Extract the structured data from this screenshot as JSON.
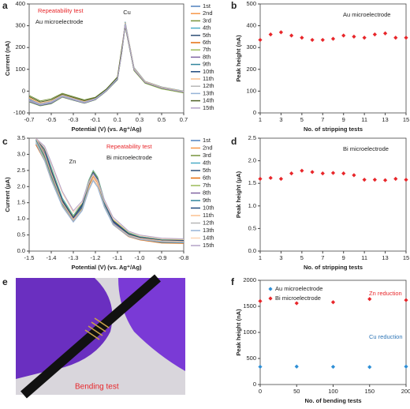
{
  "chart_data": [
    {
      "type": "line",
      "panel": "a",
      "xlabel": "Potential (V) (vs. Ag⁺/Ag)",
      "ylabel": "Current (nA)",
      "xlim": [
        -0.7,
        0.7
      ],
      "xticks": [
        -0.7,
        -0.5,
        -0.3,
        -0.1,
        0.1,
        0.3,
        0.5,
        0.7
      ],
      "ylim": [
        -100,
        400
      ],
      "yticks": [
        -100,
        0,
        100,
        200,
        300,
        400
      ],
      "annotations": [
        {
          "text": "Repeatability test",
          "color": "#e8262a"
        },
        {
          "text": "Au microelectrode",
          "color": "#222222"
        },
        {
          "text": "Cu",
          "color": "#222222"
        }
      ],
      "x": [
        -0.7,
        -0.6,
        -0.5,
        -0.4,
        -0.3,
        -0.2,
        -0.1,
        0,
        0.1,
        0.14,
        0.17,
        0.2,
        0.25,
        0.35,
        0.5,
        0.7
      ],
      "series": [
        {
          "name": "1st",
          "color": "#4f81bd",
          "values": [
            -35,
            -60,
            -50,
            -20,
            -35,
            -50,
            -35,
            5,
            60,
            190,
            310,
            230,
            100,
            40,
            15,
            -5
          ]
        },
        {
          "name": "2nd",
          "color": "#f79646",
          "values": [
            -30,
            -55,
            -45,
            -18,
            -32,
            -48,
            -32,
            8,
            62,
            195,
            315,
            235,
            105,
            42,
            18,
            -2
          ]
        },
        {
          "name": "3rd",
          "color": "#77933c",
          "values": [
            -20,
            -45,
            -35,
            -10,
            -25,
            -40,
            -28,
            10,
            65,
            200,
            300,
            225,
            95,
            38,
            12,
            -8
          ]
        },
        {
          "name": "4th",
          "color": "#4bacc6",
          "values": [
            -40,
            -62,
            -52,
            -22,
            -38,
            -52,
            -36,
            4,
            58,
            185,
            305,
            228,
            98,
            40,
            14,
            -4
          ]
        },
        {
          "name": "5th",
          "color": "#2c4d75",
          "values": [
            -45,
            -65,
            -55,
            -25,
            -40,
            -55,
            -38,
            2,
            55,
            180,
            300,
            222,
            96,
            38,
            12,
            -6
          ]
        },
        {
          "name": "6th",
          "color": "#e46c0a",
          "values": [
            -38,
            -58,
            -48,
            -20,
            -36,
            -50,
            -34,
            6,
            60,
            188,
            308,
            230,
            102,
            41,
            16,
            -3
          ]
        },
        {
          "name": "7th",
          "color": "#9bbb59",
          "values": [
            -50,
            -68,
            -58,
            -28,
            -42,
            -56,
            -40,
            0,
            52,
            178,
            298,
            220,
            94,
            36,
            10,
            -8
          ]
        },
        {
          "name": "8th",
          "color": "#8064a2",
          "values": [
            -42,
            -60,
            -50,
            -22,
            -38,
            -52,
            -36,
            4,
            58,
            186,
            312,
            232,
            104,
            43,
            17,
            -2
          ]
        },
        {
          "name": "9th",
          "color": "#31859c",
          "values": [
            -36,
            -57,
            -47,
            -19,
            -34,
            -49,
            -33,
            7,
            61,
            192,
            318,
            238,
            108,
            45,
            19,
            0
          ]
        },
        {
          "name": "10th",
          "color": "#1f497d",
          "values": [
            -48,
            -66,
            -56,
            -26,
            -41,
            -55,
            -39,
            1,
            54,
            182,
            302,
            224,
            97,
            39,
            13,
            -5
          ]
        },
        {
          "name": "11th",
          "color": "#fac090",
          "values": [
            -33,
            -56,
            -46,
            -18,
            -33,
            -48,
            -33,
            8,
            63,
            196,
            314,
            236,
            106,
            44,
            18,
            -1
          ]
        },
        {
          "name": "12th",
          "color": "#b7b7b7",
          "values": [
            -44,
            -63,
            -53,
            -24,
            -39,
            -53,
            -37,
            3,
            57,
            184,
            306,
            226,
            99,
            40,
            14,
            -4
          ]
        },
        {
          "name": "13th",
          "color": "#95b3d7",
          "values": [
            -39,
            -59,
            -49,
            -21,
            -36,
            -51,
            -35,
            5,
            59,
            189,
            309,
            229,
            101,
            41,
            15,
            -3
          ]
        },
        {
          "name": "14th",
          "color": "#4f6228",
          "values": [
            -25,
            -50,
            -40,
            -14,
            -29,
            -44,
            -30,
            9,
            64,
            198,
            296,
            224,
            96,
            39,
            13,
            -6
          ]
        },
        {
          "name": "15th",
          "color": "#b3a2c7",
          "values": [
            -46,
            -64,
            -54,
            -25,
            -40,
            -54,
            -38,
            2,
            56,
            183,
            303,
            225,
            98,
            40,
            14,
            -5
          ]
        }
      ]
    },
    {
      "type": "scatter",
      "panel": "b",
      "xlabel": "No. of stripping tests",
      "ylabel": "Peak height (nA)",
      "xlim": [
        1,
        15
      ],
      "xticks": [
        1,
        3,
        5,
        7,
        9,
        11,
        13,
        15
      ],
      "ylim": [
        0,
        500
      ],
      "yticks": [
        0,
        100,
        200,
        300,
        400,
        500
      ],
      "annotations": [
        {
          "text": "Au microelectrode",
          "color": "#222222"
        }
      ],
      "x": [
        1,
        2,
        3,
        4,
        5,
        6,
        7,
        8,
        9,
        10,
        11,
        12,
        13,
        14,
        15
      ],
      "series": [
        {
          "color": "#e8262a",
          "values": [
            335,
            360,
            370,
            355,
            345,
            335,
            335,
            340,
            355,
            350,
            345,
            360,
            365,
            345,
            345
          ]
        }
      ]
    },
    {
      "type": "line",
      "panel": "c",
      "xlabel": "Potential (V) (vs. Ag⁺/Ag)",
      "ylabel": "Current (μA)",
      "xlim": [
        -1.5,
        -0.8
      ],
      "xticks": [
        -1.5,
        -1.4,
        -1.3,
        -1.2,
        -1.1,
        {
          "value": -1,
          "label": "-1.0"
        },
        -0.9,
        -0.8
      ],
      "ylim": [
        0,
        3.5
      ],
      "yticks": [
        {
          "value": 0,
          "label": "0.0"
        },
        0.5,
        {
          "value": 1,
          "label": "1.0"
        },
        1.5,
        {
          "value": 2,
          "label": "2.0"
        },
        2.5,
        {
          "value": 3,
          "label": "3.0"
        },
        3.5
      ],
      "annotations": [
        {
          "text": "Repeatability test",
          "color": "#e8262a"
        },
        {
          "text": "Bi microelectrode",
          "color": "#222222"
        },
        {
          "text": "Zn",
          "color": "#222222"
        }
      ],
      "x": [
        -1.47,
        -1.43,
        -1.4,
        -1.35,
        -1.3,
        -1.26,
        -1.23,
        -1.21,
        -1.19,
        -1.16,
        -1.12,
        -1.05,
        -1,
        -0.9,
        -0.8
      ],
      "series": [
        {
          "name": "1st",
          "color": "#4f81bd",
          "values": [
            3.5,
            3.0,
            2.4,
            1.5,
            1.0,
            1.4,
            2.1,
            2.4,
            2.2,
            1.5,
            0.9,
            0.5,
            0.4,
            0.3,
            0.3
          ]
        },
        {
          "name": "2nd",
          "color": "#f79646",
          "values": [
            3.5,
            3.1,
            2.5,
            1.6,
            1.05,
            1.45,
            2.15,
            2.45,
            2.25,
            1.55,
            0.95,
            0.55,
            0.42,
            0.33,
            0.32
          ]
        },
        {
          "name": "3rd",
          "color": "#77933c",
          "values": [
            3.4,
            2.9,
            2.3,
            1.45,
            0.95,
            1.35,
            2.05,
            2.35,
            2.15,
            1.45,
            0.85,
            0.48,
            0.38,
            0.28,
            0.27
          ]
        },
        {
          "name": "4th",
          "color": "#4bacc6",
          "values": [
            3.5,
            3.2,
            2.6,
            1.65,
            1.1,
            1.5,
            2.2,
            2.5,
            2.3,
            1.6,
            1.0,
            0.58,
            0.45,
            0.36,
            0.35
          ]
        },
        {
          "name": "5th",
          "color": "#2c4d75",
          "values": [
            3.5,
            3.0,
            2.45,
            1.55,
            1.02,
            1.42,
            2.12,
            2.42,
            2.22,
            1.52,
            0.92,
            0.52,
            0.41,
            0.31,
            0.31
          ]
        },
        {
          "name": "6th",
          "color": "#e46c0a",
          "values": [
            3.3,
            2.8,
            2.2,
            1.4,
            0.92,
            1.32,
            2.02,
            2.32,
            2.12,
            1.42,
            0.82,
            0.45,
            0.35,
            0.25,
            0.24
          ]
        },
        {
          "name": "7th",
          "color": "#9bbb59",
          "values": [
            3.5,
            3.1,
            2.55,
            1.6,
            1.08,
            1.48,
            2.18,
            2.48,
            2.28,
            1.58,
            0.98,
            0.56,
            0.44,
            0.35,
            0.34
          ]
        },
        {
          "name": "8th",
          "color": "#8064a2",
          "values": [
            3.5,
            3.05,
            2.45,
            1.52,
            1.0,
            1.38,
            2.08,
            2.38,
            2.18,
            1.48,
            0.88,
            0.49,
            0.39,
            0.29,
            0.29
          ]
        },
        {
          "name": "9th",
          "color": "#31859c",
          "values": [
            3.45,
            2.95,
            2.35,
            1.48,
            0.97,
            1.36,
            2.06,
            2.36,
            2.16,
            1.46,
            0.86,
            0.47,
            0.37,
            0.27,
            0.26
          ]
        },
        {
          "name": "10th",
          "color": "#1f497d",
          "values": [
            3.5,
            3.15,
            2.5,
            1.58,
            1.04,
            1.44,
            2.14,
            2.44,
            2.24,
            1.54,
            0.94,
            0.54,
            0.43,
            0.34,
            0.33
          ]
        },
        {
          "name": "11th",
          "color": "#fac090",
          "values": [
            3.5,
            3.0,
            2.4,
            1.5,
            0.98,
            1.3,
            1.95,
            2.25,
            2.05,
            1.4,
            0.85,
            0.5,
            0.4,
            0.32,
            0.3
          ]
        },
        {
          "name": "12th",
          "color": "#b7b7b7",
          "values": [
            3.4,
            2.85,
            2.25,
            1.42,
            0.94,
            1.28,
            1.9,
            2.2,
            2.0,
            1.38,
            0.84,
            0.48,
            0.38,
            0.3,
            0.28
          ]
        },
        {
          "name": "13th",
          "color": "#95b3d7",
          "values": [
            3.35,
            2.8,
            2.2,
            1.38,
            0.9,
            1.25,
            1.88,
            2.18,
            1.98,
            1.36,
            0.82,
            0.46,
            0.36,
            0.28,
            0.27
          ]
        },
        {
          "name": "14th",
          "color": "#fcd5b5",
          "values": [
            3.5,
            3.2,
            2.7,
            1.8,
            1.2,
            1.5,
            2.1,
            2.35,
            2.15,
            1.55,
            1.0,
            0.6,
            0.48,
            0.38,
            0.36
          ]
        },
        {
          "name": "15th",
          "color": "#b3a2c7",
          "values": [
            3.5,
            3.25,
            2.75,
            1.85,
            1.25,
            1.55,
            2.15,
            2.4,
            2.2,
            1.6,
            1.05,
            0.62,
            0.5,
            0.4,
            0.38
          ]
        }
      ]
    },
    {
      "type": "scatter",
      "panel": "d",
      "xlabel": "No. of stripping tests",
      "ylabel": "Peak height (μA)",
      "xlim": [
        1,
        15
      ],
      "xticks": [
        1,
        3,
        5,
        7,
        9,
        11,
        13,
        15
      ],
      "ylim": [
        0,
        2.5
      ],
      "yticks": [
        {
          "value": 0,
          "label": "0.0"
        },
        0.5,
        {
          "value": 1,
          "label": "1.0"
        },
        1.5,
        {
          "value": 2,
          "label": "2.0"
        },
        2.5
      ],
      "annotations": [
        {
          "text": "Bi microelectrode",
          "color": "#222222"
        }
      ],
      "x": [
        1,
        2,
        3,
        4,
        5,
        6,
        7,
        8,
        9,
        10,
        11,
        12,
        13,
        14,
        15
      ],
      "series": [
        {
          "color": "#e8262a",
          "values": [
            1.6,
            1.62,
            1.6,
            1.72,
            1.78,
            1.75,
            1.72,
            1.73,
            1.72,
            1.68,
            1.58,
            1.58,
            1.57,
            1.6,
            1.58
          ]
        }
      ]
    },
    {
      "type": "scatter",
      "panel": "f",
      "xlabel": "No. of bending tests",
      "ylabel": "Peak height (nA)",
      "xlim": [
        0,
        200
      ],
      "xticks": [
        0,
        50,
        100,
        150,
        200
      ],
      "ylim": [
        0,
        2000
      ],
      "yticks": [
        0,
        500,
        1000,
        1500,
        2000
      ],
      "annotations": [
        {
          "text": "Zn reduction",
          "color": "#e8262a"
        },
        {
          "text": "Cu reduction",
          "color": "#2e75b6"
        }
      ],
      "x": [
        0,
        50,
        100,
        150,
        200
      ],
      "series": [
        {
          "name": "Au microelectrode",
          "color": "#2e8fd6",
          "values": [
            340,
            345,
            340,
            335,
            345
          ]
        },
        {
          "name": "Bi microelectrode",
          "color": "#e8262a",
          "values": [
            1600,
            1560,
            1580,
            1640,
            1620
          ]
        }
      ]
    }
  ],
  "panel_e": {
    "label": "e",
    "caption": "Bending test"
  }
}
